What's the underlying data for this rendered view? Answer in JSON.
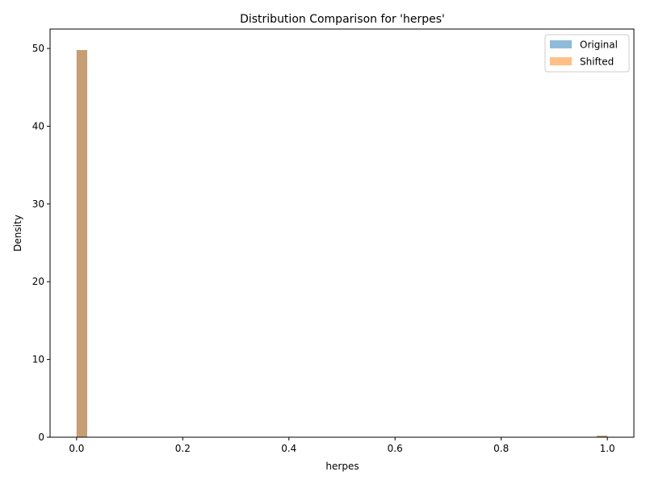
{
  "chart_data": {
    "type": "bar",
    "title": "Distribution Comparison for 'herpes'",
    "xlabel": "herpes",
    "ylabel": "Density",
    "xlim": [
      -0.05,
      1.05
    ],
    "ylim": [
      0,
      52.5
    ],
    "xticks": [
      "0.0",
      "0.2",
      "0.4",
      "0.6",
      "0.8",
      "1.0"
    ],
    "xtick_values": [
      0,
      0.2,
      0.4,
      0.6,
      0.8,
      1.0
    ],
    "yticks": [
      "0",
      "10",
      "20",
      "30",
      "40",
      "50"
    ],
    "ytick_values": [
      0,
      10,
      20,
      30,
      40,
      50
    ],
    "grid": false,
    "legend_position": "top-right",
    "bin_width": 0.02,
    "series": [
      {
        "name": "Original",
        "color": "#1f77b4",
        "opacity": 0.5,
        "bins": [
          {
            "x": 0.0,
            "value": 49.8
          },
          {
            "x": 0.98,
            "value": 0.2
          }
        ]
      },
      {
        "name": "Shifted",
        "color": "#ff7f0e",
        "opacity": 0.5,
        "bins": [
          {
            "x": 0.0,
            "value": 49.8
          },
          {
            "x": 0.98,
            "value": 0.2
          }
        ]
      }
    ]
  }
}
